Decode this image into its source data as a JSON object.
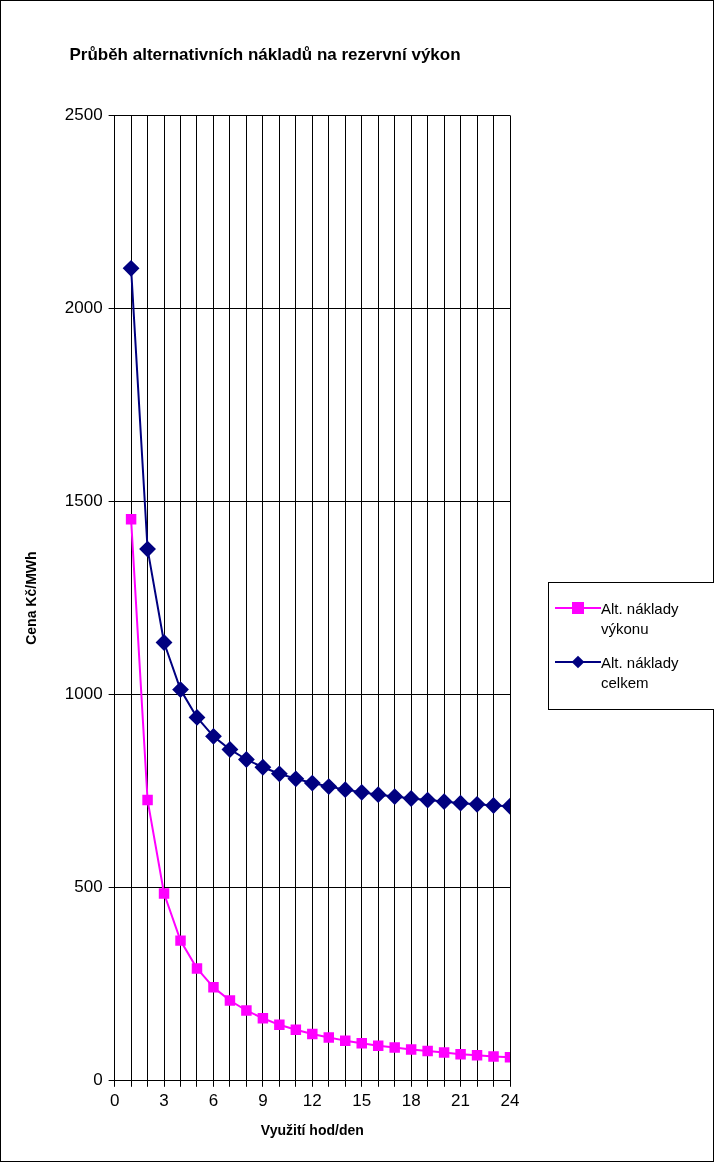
{
  "chart_data": {
    "type": "line",
    "title": "Průběh alternativních nákladů na rezervní výkon",
    "xlabel": "Využití hod/den",
    "ylabel": "Cena Kč/MWh",
    "x": [
      1,
      2,
      3,
      4,
      5,
      6,
      7,
      8,
      9,
      10,
      11,
      12,
      13,
      14,
      15,
      16,
      17,
      18,
      19,
      20,
      21,
      22,
      23,
      24
    ],
    "series": [
      {
        "name": "Alt. náklady výkonu",
        "color": "#ff00ff",
        "marker": "square",
        "values": [
          1454,
          727,
          485,
          363,
          291,
          242,
          208,
          182,
          162,
          145,
          132,
          121,
          112,
          104,
          97,
          91,
          86,
          81,
          77,
          73,
          69,
          66,
          63,
          61
        ]
      },
      {
        "name": "Alt. náklady celkem",
        "color": "#000080",
        "marker": "diamond",
        "values": [
          2104,
          1377,
          1135,
          1013,
          941,
          892,
          858,
          832,
          812,
          795,
          782,
          771,
          762,
          754,
          747,
          741,
          736,
          731,
          727,
          723,
          719,
          716,
          713,
          711
        ]
      }
    ],
    "xlim": [
      0,
      24
    ],
    "xticks": [
      0,
      {
        "value": 1,
        "label": null
      },
      {
        "value": 2,
        "label": null
      },
      3,
      {
        "value": 4,
        "label": null
      },
      {
        "value": 5,
        "label": null
      },
      6,
      {
        "value": 7,
        "label": null
      },
      {
        "value": 8,
        "label": null
      },
      9,
      {
        "value": 10,
        "label": null
      },
      {
        "value": 11,
        "label": null
      },
      12,
      {
        "value": 13,
        "label": null
      },
      {
        "value": 14,
        "label": null
      },
      15,
      {
        "value": 16,
        "label": null
      },
      {
        "value": 17,
        "label": null
      },
      18,
      {
        "value": 19,
        "label": null
      },
      {
        "value": 20,
        "label": null
      },
      21,
      {
        "value": 22,
        "label": null
      },
      {
        "value": 23,
        "label": null
      },
      24
    ],
    "ylim": [
      0,
      2500
    ],
    "yticks": [
      0,
      500,
      1000,
      1500,
      2000,
      2500
    ],
    "grid": true,
    "legend": "right",
    "line_style": "solid"
  }
}
